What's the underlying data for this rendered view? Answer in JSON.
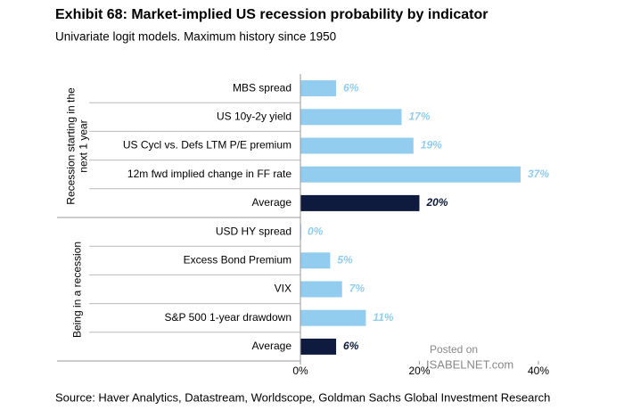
{
  "chart_data": {
    "type": "bar",
    "title": "Exhibit 68: Market-implied US recession probability by indicator",
    "subtitle": "Univariate logit models. Maximum history since 1950",
    "source": "Source: Haver Analytics, Datastream, Worldscope, Goldman Sachs Global Investment Research",
    "watermark": [
      "Posted on",
      "ISABELNET.com"
    ],
    "orientation": "horizontal",
    "groups": [
      {
        "label": "Recession starting in the next 1 year",
        "categories": [
          "MBS spread",
          "US 10y-2y yield",
          "US Cycl vs. Defs LTM P/E premium",
          "12m fwd implied change in FF rate",
          "Average"
        ],
        "values": [
          6,
          17,
          19,
          37,
          20
        ],
        "value_labels": [
          "6%",
          "17%",
          "19%",
          "37%",
          "20%"
        ],
        "colors": [
          "#92cdef",
          "#92cdef",
          "#92cdef",
          "#92cdef",
          "#0e1a3e"
        ]
      },
      {
        "label": "Being in a recession",
        "categories": [
          "USD HY spread",
          "Excess Bond Premium",
          "VIX",
          "S&P 500 1-year drawdown",
          "Average"
        ],
        "values": [
          0,
          5,
          7,
          11,
          6
        ],
        "value_labels": [
          "0%",
          "5%",
          "7%",
          "11%",
          "6%"
        ],
        "colors": [
          "#92cdef",
          "#92cdef",
          "#92cdef",
          "#92cdef",
          "#0e1a3e"
        ]
      }
    ],
    "xlim": [
      0,
      40
    ],
    "xticks": [
      {
        "value": 0,
        "label": "0%"
      },
      {
        "value": 20,
        "label": "20%"
      },
      {
        "value": 40,
        "label": "40%"
      }
    ]
  }
}
